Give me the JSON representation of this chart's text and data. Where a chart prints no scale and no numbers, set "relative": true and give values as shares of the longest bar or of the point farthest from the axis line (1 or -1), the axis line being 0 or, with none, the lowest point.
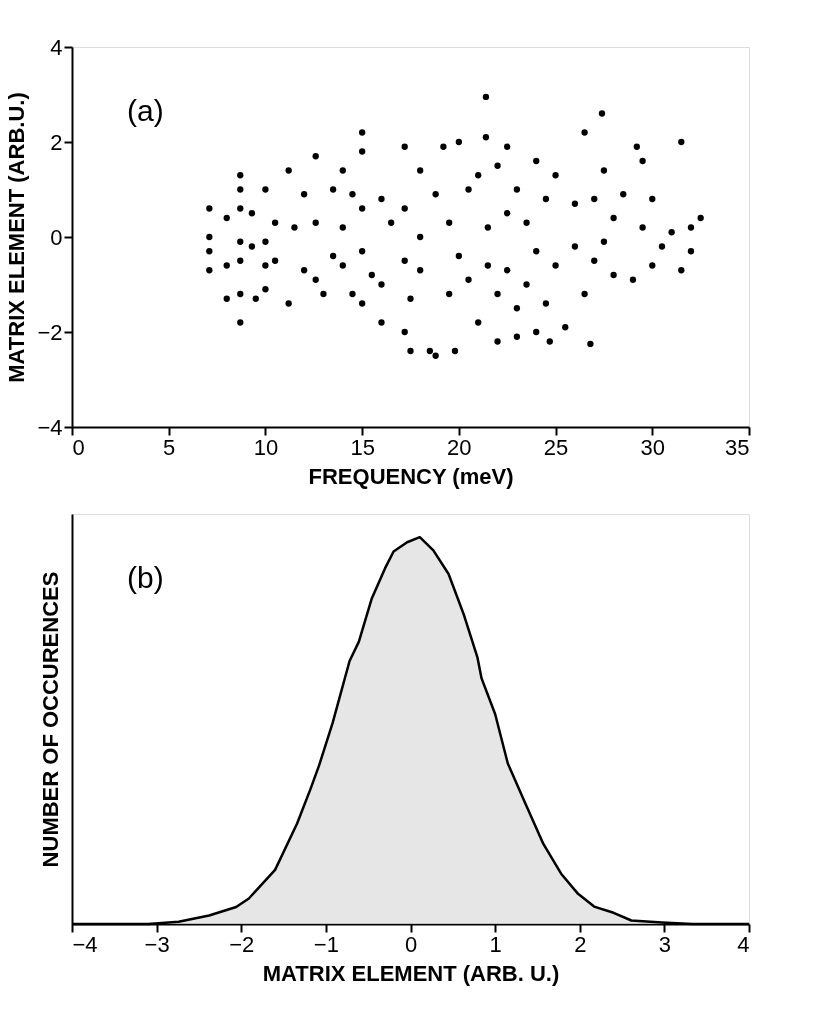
{
  "chart_data": [
    {
      "type": "scatter",
      "xlabel": "FREQUENCY (meV)",
      "ylabel": "MATRIX ELEMENT (ARB.U.)",
      "annotations": [
        "(a)"
      ],
      "xlim": [
        0,
        35
      ],
      "xticks": [
        0,
        5,
        10,
        15,
        20,
        25,
        30,
        35
      ],
      "ylim": [
        -4,
        4
      ],
      "yticks": [
        -4,
        -2,
        0,
        2,
        4
      ],
      "grid": false,
      "marker": "circle",
      "series": [
        {
          "color": "#000000",
          "x": [
            7.1,
            7.1,
            7.1,
            7.1,
            8,
            8,
            8,
            8.7,
            8.7,
            8.7,
            8.7,
            8.7,
            8.7,
            8.7,
            9.3,
            9.3,
            9.5,
            10,
            10,
            10,
            10,
            10.5,
            10.5,
            11.2,
            11.2,
            11.5,
            12,
            12,
            12.6,
            12.6,
            12.6,
            13,
            13.5,
            13.5,
            14,
            14,
            14,
            14.5,
            14.5,
            15,
            15,
            15,
            15,
            15,
            15.5,
            16,
            16,
            16,
            16.5,
            17.2,
            17.2,
            17.2,
            17.2,
            17.5,
            17.5,
            18,
            18,
            18,
            18.5,
            18.8,
            18.8,
            19.2,
            19.5,
            19.5,
            19.8,
            20,
            20,
            20.5,
            20.5,
            21,
            21,
            21.4,
            21.4,
            21.5,
            21.5,
            22,
            22,
            22,
            22.5,
            22.5,
            22.5,
            23,
            23,
            23,
            23.5,
            23.5,
            24,
            24,
            24,
            24.5,
            24.5,
            24.7,
            25,
            25,
            25.5,
            26,
            26,
            26.5,
            26.5,
            26.8,
            27,
            27,
            27.4,
            27.5,
            27.5,
            28,
            28,
            28.5,
            29,
            29.2,
            29.5,
            29.5,
            30,
            30,
            30.5,
            31,
            31.5,
            31.5,
            32,
            32,
            32.5
          ],
          "values": [
            0.6,
            0,
            -0.3,
            -0.7,
            0.4,
            -0.6,
            -1.3,
            1.3,
            1.0,
            0.6,
            -0.1,
            -0.5,
            -1.2,
            -1.8,
            0.5,
            -0.2,
            -1.3,
            1.0,
            -0.1,
            -0.6,
            -1.1,
            0.3,
            -0.5,
            1.4,
            -1.4,
            0.2,
            0.9,
            -0.7,
            1.7,
            0.3,
            -0.9,
            -1.2,
            1.0,
            -0.4,
            1.4,
            0.2,
            -0.6,
            0.9,
            -1.2,
            2.2,
            1.8,
            0.6,
            -0.3,
            -1.4,
            -0.8,
            0.8,
            -1.0,
            -1.8,
            0.3,
            1.9,
            0.6,
            -0.5,
            -2.0,
            -2.4,
            -1.3,
            1.4,
            0,
            -0.7,
            -2.4,
            0.9,
            -2.5,
            1.9,
            0.3,
            -1.2,
            -2.4,
            2.0,
            -0.4,
            1.0,
            -0.9,
            1.3,
            -1.8,
            2.95,
            2.1,
            0.2,
            -0.6,
            1.5,
            -1.2,
            -2.2,
            1.9,
            0.5,
            -0.7,
            1.0,
            -1.5,
            -2.1,
            0.3,
            -1.0,
            1.6,
            -0.3,
            -2.0,
            0.8,
            -1.4,
            -2.2,
            1.3,
            -0.6,
            -1.9,
            0.7,
            -0.2,
            2.2,
            -1.2,
            -2.25,
            0.8,
            -0.5,
            2.6,
            1.4,
            -0.1,
            0.4,
            -0.8,
            0.9,
            -0.9,
            1.9,
            1.6,
            0.2,
            0.8,
            -0.6,
            -0.2,
            0.1,
            2.0,
            -0.7,
            -0.3,
            0.2,
            0.4
          ]
        }
      ]
    },
    {
      "type": "area",
      "xlabel": "MATRIX ELEMENT (ARB. U.)",
      "ylabel": "NUMBER OF OCCURENCES",
      "annotations": [
        "(b)"
      ],
      "relative": true,
      "xlim": [
        -4,
        4
      ],
      "xticks": [
        -4,
        -3,
        -2,
        -1,
        0,
        1,
        2,
        3,
        4
      ],
      "tick_labels": "x",
      "grid": false,
      "series": [
        {
          "color": "#dcdcdc",
          "x": [
            -4,
            -3.1,
            -2.74,
            -2.38,
            -2.06,
            -1.91,
            -1.6,
            -1.34,
            -1.18,
            -1.08,
            -0.92,
            -0.72,
            -0.61,
            -0.46,
            -0.3,
            -0.2,
            -0.04,
            0.11,
            0.27,
            0.45,
            0.63,
            0.79,
            0.84,
            1.0,
            1.15,
            1.36,
            1.57,
            1.78,
            1.98,
            2.17,
            2.4,
            2.61,
            2.97,
            3.33,
            4
          ],
          "values": [
            0,
            0,
            0.006,
            0.022,
            0.044,
            0.066,
            0.14,
            0.26,
            0.35,
            0.41,
            0.52,
            0.68,
            0.73,
            0.84,
            0.92,
            0.963,
            0.987,
            1,
            0.966,
            0.905,
            0.8,
            0.69,
            0.635,
            0.543,
            0.415,
            0.31,
            0.207,
            0.13,
            0.078,
            0.045,
            0.029,
            0.009,
            0.004,
            0,
            0
          ]
        }
      ]
    }
  ]
}
